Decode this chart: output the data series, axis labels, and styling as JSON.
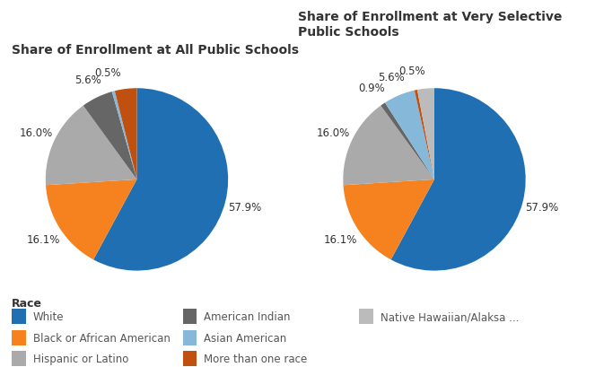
{
  "title_left": "Share of Enrollment at All Public Schools",
  "title_right": "Share of Enrollment at Very Selective\nPublic Schools",
  "background_color": "#ffffff",
  "pie1": {
    "values": [
      57.9,
      16.1,
      16.0,
      5.6,
      0.5,
      3.9
    ],
    "labels": [
      "57.9%",
      "16.1%",
      "16.0%",
      "5.6%",
      "0.5%",
      ""
    ],
    "colors": [
      "#1F6FB2",
      "#F5821F",
      "#AAAAAA",
      "#666666",
      "#85B8D9",
      "#C05010"
    ],
    "startangle": 90,
    "counterclock": false
  },
  "pie2": {
    "values": [
      57.9,
      16.1,
      16.0,
      0.9,
      5.6,
      0.5,
      3.0
    ],
    "labels": [
      "57.9%",
      "16.1%",
      "16.0%",
      "0.9%",
      "5.6%",
      "0.5%",
      ""
    ],
    "colors": [
      "#1F6FB2",
      "#F5821F",
      "#AAAAAA",
      "#666666",
      "#85B8D9",
      "#C05010",
      "#BBBBBB"
    ],
    "startangle": 90,
    "counterclock": false
  },
  "legend_title": "Race",
  "legend_items": [
    {
      "label": "White",
      "color": "#1F6FB2"
    },
    {
      "label": "Black or African American",
      "color": "#F5821F"
    },
    {
      "label": "Hispanic or Latino",
      "color": "#AAAAAA"
    },
    {
      "label": "American Indian",
      "color": "#666666"
    },
    {
      "label": "Asian American",
      "color": "#85B8D9"
    },
    {
      "label": "More than one race",
      "color": "#C05010"
    },
    {
      "label": "Native Hawaiian/Alaksa ...",
      "color": "#BBBBBB"
    }
  ]
}
